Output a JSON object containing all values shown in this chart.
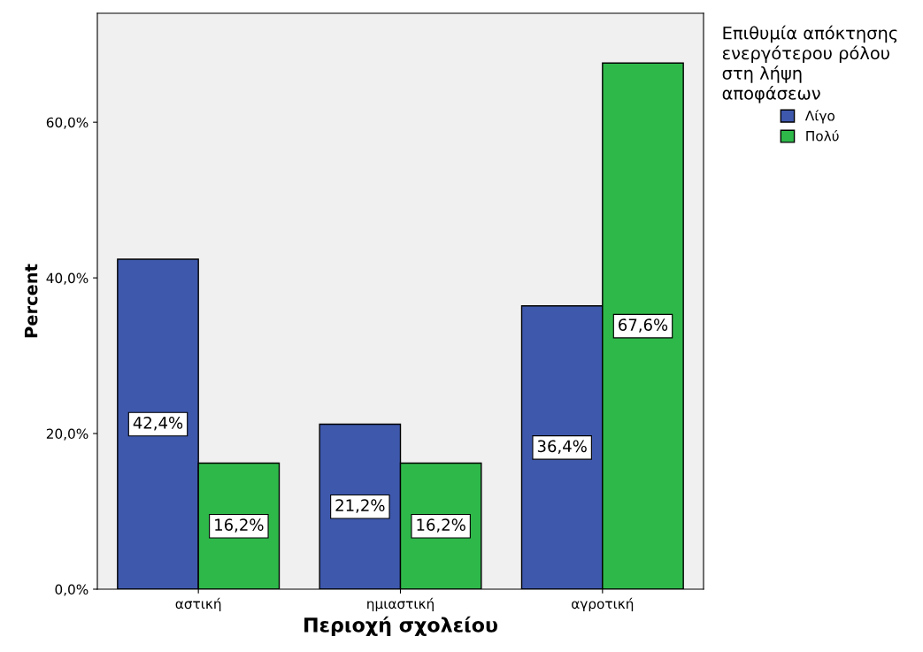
{
  "chart_data": {
    "type": "bar",
    "xlabel": "Περιοχή σχολείου",
    "ylabel": "Percent",
    "legend_title": "Επιθυμία απόκτησης\nενεργότερου ρόλου\nστη λήψη\nαποφάσεων",
    "categories": [
      "αστική",
      "ημιαστική",
      "αγροτική"
    ],
    "series": [
      {
        "name": "Λίγο",
        "color": "#3e58ac",
        "values": [
          42.4,
          21.2,
          36.4
        ],
        "value_labels": [
          "42,4%",
          "21,2%",
          "36,4%"
        ]
      },
      {
        "name": "Πολύ",
        "color": "#2fb84a",
        "values": [
          16.2,
          16.2,
          67.6
        ],
        "value_labels": [
          "16,2%",
          "16,2%",
          "67,6%"
        ]
      }
    ],
    "ylim": [
      0,
      74
    ],
    "yticks": [
      {
        "value": 0,
        "label": "0,0%"
      },
      {
        "value": 20,
        "label": "20,0%"
      },
      {
        "value": 40,
        "label": "40,0%"
      },
      {
        "value": 60,
        "label": "60,0%"
      }
    ],
    "grid": false,
    "legend": "top right"
  }
}
